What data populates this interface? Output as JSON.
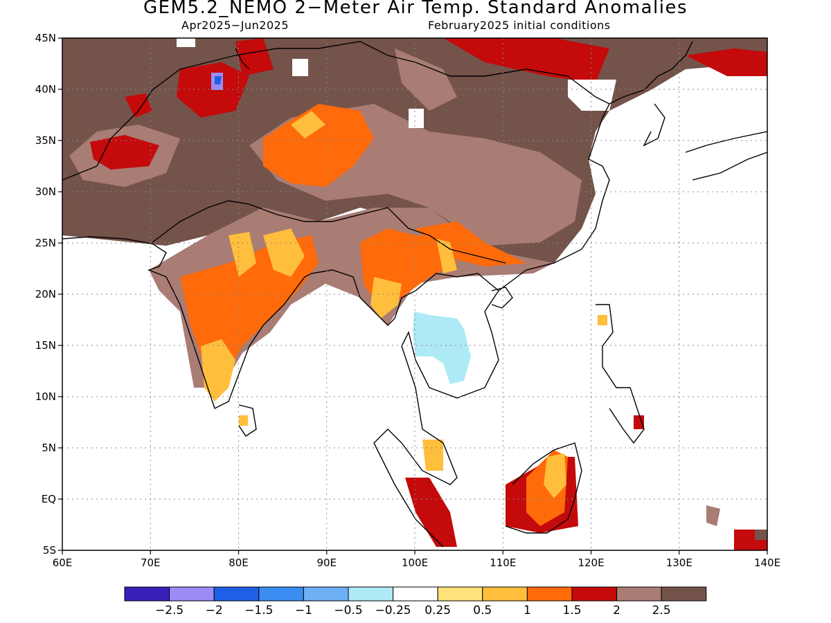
{
  "title": "GEM5.2_NEMO 2−Meter Air Temp. Standard Anomalies",
  "subtitle_left": "Apr2025−Jun2025",
  "subtitle_right": "February2025 initial conditions",
  "map": {
    "lon_range": [
      60,
      140
    ],
    "lat_range": [
      -5,
      45
    ],
    "lon_ticks": [
      "60E",
      "70E",
      "80E",
      "90E",
      "100E",
      "110E",
      "120E",
      "130E",
      "140E"
    ],
    "lat_ticks": [
      "5S",
      "EQ",
      "5N",
      "10N",
      "15N",
      "20N",
      "25N",
      "30N",
      "35N",
      "40N",
      "45N"
    ],
    "gridlines": true
  },
  "colorbar": {
    "colors": [
      "#3a1fb8",
      "#9b8cf5",
      "#1f5fe6",
      "#3a8cf0",
      "#6fb0f5",
      "#aeeaf5",
      "#ffffff",
      "#ffe27a",
      "#ffbe3c",
      "#ff6a0a",
      "#c40a0a",
      "#a97c74",
      "#74534a"
    ],
    "labels": [
      "−2.5",
      "−2",
      "−1.5",
      "−1",
      "−0.5",
      "−0.25",
      "0.25",
      "0.5",
      "1",
      "1.5",
      "2",
      "2.5"
    ]
  },
  "regions": [
    {
      "name": "Central/South Asia anomaly",
      "color": "#74534a"
    },
    {
      "name": "Tibetan plateau anomaly",
      "color": "#a97c74"
    },
    {
      "name": "Himalaya margin anomaly",
      "color": "#c40a0a"
    },
    {
      "name": "Indian subcontinent anomaly",
      "color": "#ff6a0a"
    },
    {
      "name": "Thailand cool anomaly",
      "color": "#aeeaf5"
    },
    {
      "name": "Borneo anomaly",
      "color": "#ff6a0a"
    }
  ]
}
